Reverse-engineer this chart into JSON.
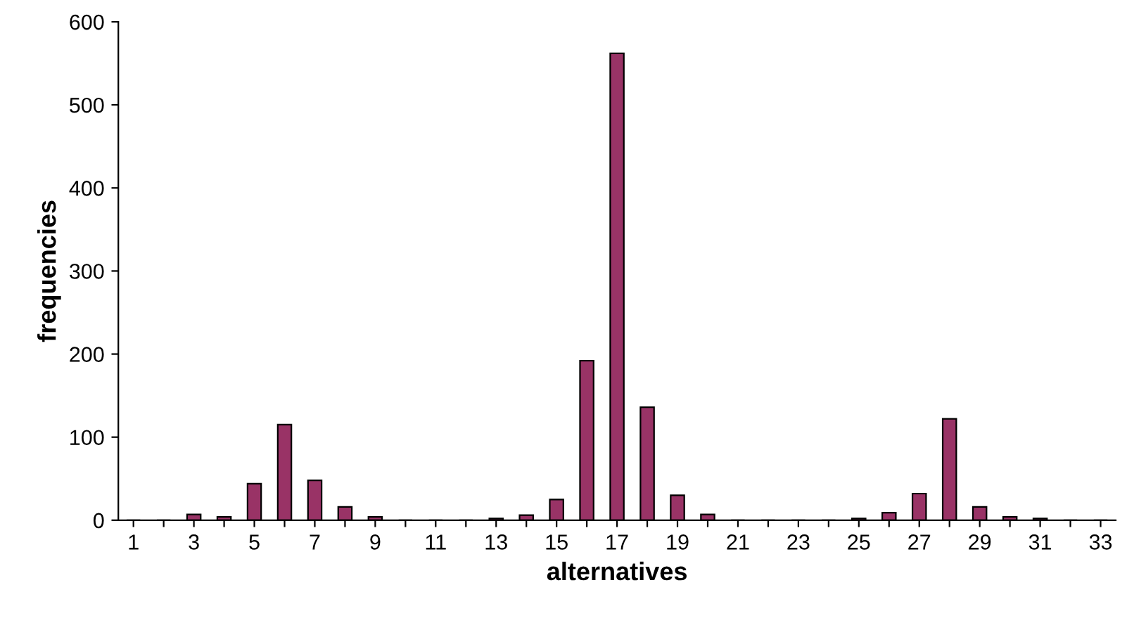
{
  "chart_data": {
    "type": "bar",
    "xlabel": "alternatives",
    "ylabel": "frequencies",
    "categories": [
      "1",
      null,
      "3",
      null,
      "5",
      null,
      "7",
      null,
      "9",
      null,
      "11",
      null,
      "13",
      null,
      "15",
      null,
      "17",
      null,
      "19",
      null,
      "21",
      null,
      "23",
      null,
      "25",
      null,
      "27",
      null,
      "29",
      null,
      "31",
      null,
      "33"
    ],
    "values": [
      0,
      0,
      7,
      4,
      44,
      115,
      48,
      16,
      4,
      0,
      0,
      0,
      2,
      6,
      25,
      192,
      562,
      136,
      30,
      7,
      0,
      0,
      0,
      0,
      2,
      9,
      32,
      122,
      16,
      4,
      2,
      0,
      0
    ],
    "color": "#993366",
    "ylim": [
      0,
      600
    ],
    "yticks": [
      0,
      100,
      200,
      300,
      400,
      500,
      600
    ],
    "grid": false,
    "legend": false
  }
}
